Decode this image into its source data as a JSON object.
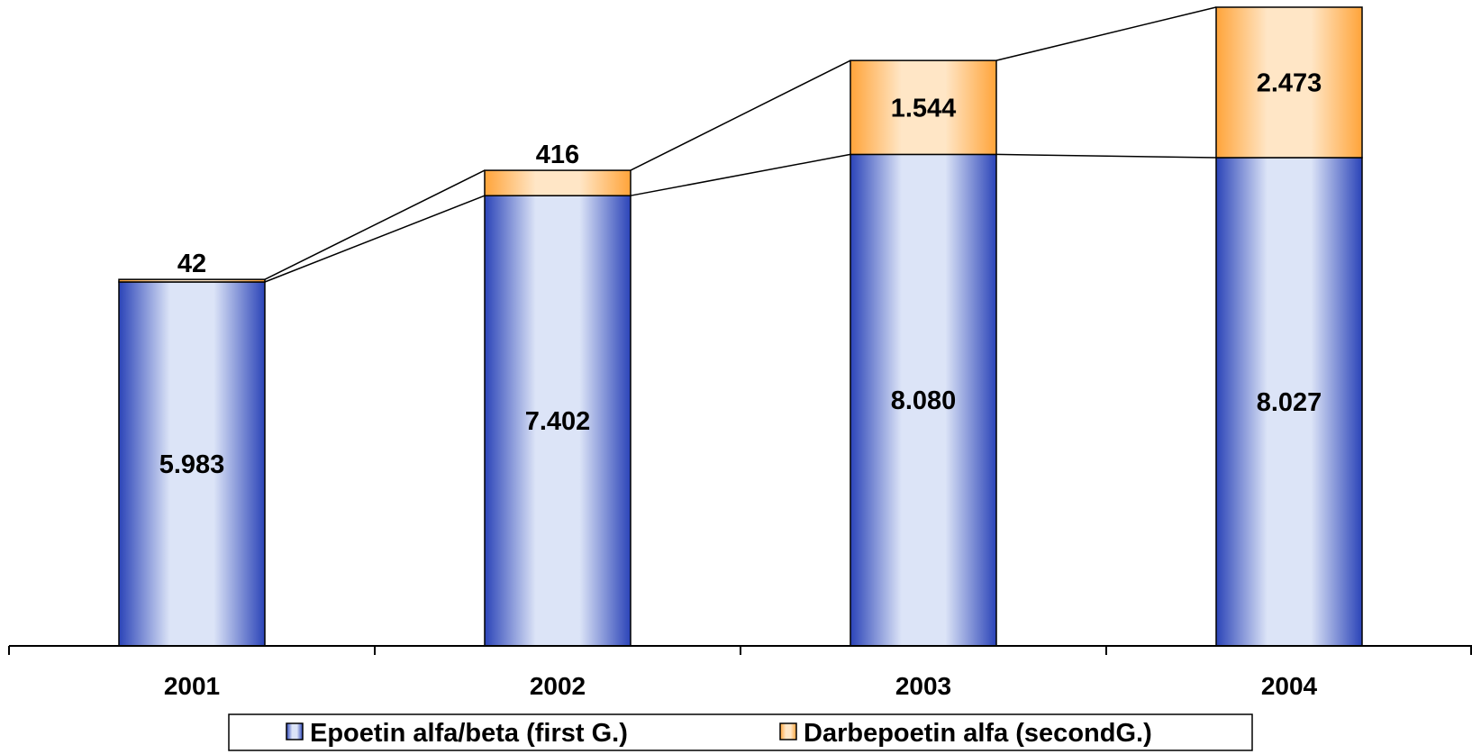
{
  "chart_data": {
    "type": "bar",
    "stacked": true,
    "categories": [
      "2001",
      "2002",
      "2003",
      "2004"
    ],
    "series": [
      {
        "name": "Epoetin alfa/beta (first G.)",
        "values": [
          5983,
          7402,
          8080,
          8027
        ],
        "labels": [
          "5.983",
          "7.402",
          "8.080",
          "8.027"
        ]
      },
      {
        "name": "Darbepoetin alfa (secondG.)",
        "values": [
          42,
          416,
          1544,
          2473
        ],
        "labels": [
          "42",
          "416",
          "1.544",
          "2.473"
        ]
      }
    ],
    "ylim": [
      0,
      10500
    ],
    "grid": false,
    "legend_position": "bottom",
    "series_lines": true,
    "colors": {
      "series_1_edge": "#2b44b8",
      "series_1_center": "#dce4f7",
      "series_2_edge": "#ffa43a",
      "series_2_center": "#ffe6c6"
    }
  }
}
